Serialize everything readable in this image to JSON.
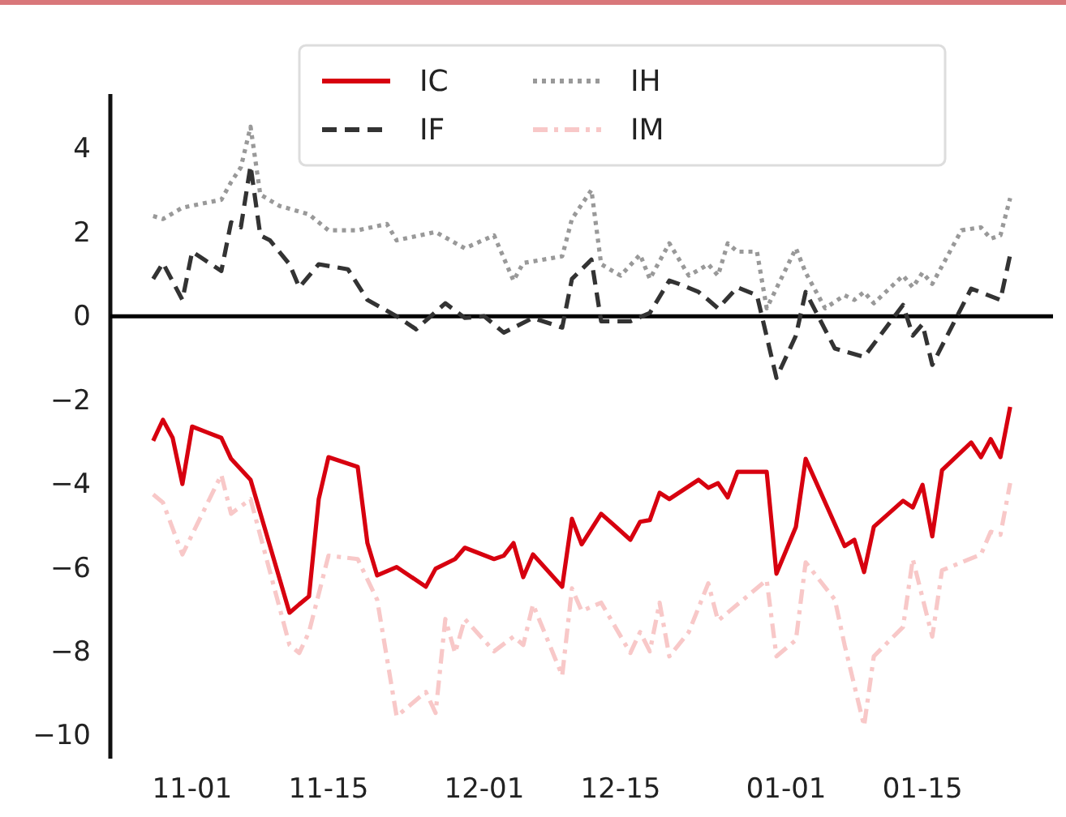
{
  "chart_data": {
    "type": "line",
    "categories": [
      null,
      null,
      null,
      null,
      "11-01",
      null,
      null,
      null,
      null,
      null,
      null,
      null,
      null,
      null,
      null,
      null,
      null,
      null,
      "11-15",
      null,
      null,
      null,
      null,
      null,
      null,
      null,
      null,
      null,
      null,
      null,
      null,
      null,
      null,
      null,
      "12-01",
      null,
      null,
      null,
      null,
      null,
      null,
      null,
      null,
      null,
      null,
      null,
      null,
      null,
      "12-15",
      null,
      null,
      null,
      null,
      null,
      null,
      null,
      null,
      null,
      null,
      null,
      null,
      null,
      null,
      null,
      null,
      "01-01",
      null,
      null,
      null,
      null,
      null,
      null,
      null,
      null,
      null,
      null,
      null,
      null,
      null,
      "01-15",
      null,
      null,
      null,
      null,
      null,
      null,
      null,
      null,
      null
    ],
    "ylim": [
      -10.55,
      5.3
    ],
    "yticks": [
      -10,
      -8,
      -6,
      -4,
      -2,
      0,
      2,
      4
    ],
    "grid": false,
    "legend": "top",
    "ref_lines": [
      {
        "axis": "y",
        "value": 0,
        "color": "#000000"
      }
    ],
    "series": [
      {
        "name": "IC",
        "color": "#d7000f",
        "line_style": "solid",
        "values": [
          -2.97,
          -2.47,
          -2.9,
          -4.0,
          -2.63,
          null,
          null,
          -2.9,
          -3.4,
          null,
          -3.9,
          null,
          null,
          null,
          -7.07,
          -6.87,
          -6.68,
          -4.36,
          -3.36,
          null,
          null,
          -3.59,
          -5.41,
          -6.18,
          null,
          -5.98,
          null,
          null,
          -6.45,
          -6.02,
          null,
          -5.79,
          -5.52,
          null,
          null,
          -5.79,
          -5.71,
          -5.41,
          -6.22,
          -5.68,
          null,
          null,
          -6.45,
          -4.83,
          -5.44,
          null,
          -4.71,
          null,
          null,
          -5.33,
          -4.9,
          -4.86,
          -4.21,
          -4.36,
          null,
          null,
          -3.9,
          -4.09,
          -3.98,
          -4.32,
          -3.71,
          null,
          null,
          -3.71,
          -6.14,
          null,
          -5.02,
          -3.4,
          null,
          null,
          null,
          -5.48,
          -5.33,
          -6.1,
          -5.02,
          null,
          null,
          -4.4,
          -4.56,
          -4.02,
          -5.25,
          -3.67,
          null,
          null,
          -3.01,
          -3.36,
          -2.93,
          -3.36,
          -2.16
        ]
      },
      {
        "name": "IF",
        "color": "#333333",
        "line_style": "dashed",
        "values": [
          0.89,
          1.27,
          null,
          0.39,
          1.54,
          null,
          null,
          1.08,
          2.24,
          2.12,
          3.59,
          1.93,
          1.81,
          null,
          1.24,
          0.69,
          null,
          1.24,
          null,
          null,
          1.12,
          null,
          0.39,
          null,
          null,
          0,
          null,
          -0.31,
          null,
          null,
          0.31,
          null,
          -0.04,
          null,
          0,
          null,
          -0.39,
          null,
          null,
          -0.04,
          null,
          null,
          -0.27,
          0.89,
          null,
          1.35,
          -0.12,
          null,
          null,
          -0.12,
          null,
          0.08,
          null,
          0.85,
          0.77,
          null,
          0.58,
          0.39,
          0.19,
          null,
          0.69,
          null,
          0.5,
          null,
          -1.47,
          null,
          -0.46,
          0.58,
          null,
          null,
          -0.77,
          null,
          null,
          -0.97,
          null,
          null,
          null,
          0.27,
          -0.46,
          -0.19,
          -1.16,
          null,
          null,
          null,
          0.66,
          null,
          null,
          0.39,
          1.47
        ]
      },
      {
        "name": "IH",
        "color": "#999999",
        "line_style": "dotted",
        "values": [
          2.39,
          2.32,
          null,
          2.59,
          null,
          null,
          null,
          2.78,
          3.2,
          3.55,
          4.52,
          2.9,
          null,
          2.63,
          null,
          null,
          2.43,
          null,
          2.05,
          null,
          null,
          2.05,
          null,
          null,
          2.2,
          1.81,
          null,
          null,
          null,
          2.01,
          null,
          null,
          1.62,
          null,
          null,
          1.93,
          null,
          0.85,
          1.27,
          null,
          null,
          null,
          1.43,
          2.32,
          null,
          3.01,
          1.24,
          null,
          0.97,
          null,
          1.47,
          0.89,
          null,
          1.74,
          null,
          0.97,
          null,
          1.24,
          0.97,
          1.74,
          1.54,
          null,
          1.54,
          0.19,
          null,
          null,
          1.62,
          1.04,
          null,
          0.19,
          null,
          0.5,
          0.39,
          0.58,
          0.31,
          null,
          null,
          0.97,
          0.69,
          1.04,
          0.77,
          null,
          null,
          2.05,
          null,
          2.12,
          1.85,
          1.93,
          2.82
        ]
      },
      {
        "name": "IM",
        "color": "#f8c8c8",
        "line_style": "dashdot",
        "values": [
          -4.25,
          -4.44,
          null,
          -5.68,
          null,
          null,
          null,
          -3.78,
          -4.71,
          null,
          -4.36,
          null,
          null,
          null,
          -7.84,
          -8.03,
          -7.53,
          null,
          -5.71,
          null,
          null,
          -5.79,
          null,
          -6.76,
          null,
          -9.54,
          null,
          null,
          -8.96,
          -9.46,
          -7.22,
          -8.03,
          -7.22,
          null,
          null,
          -7.99,
          null,
          -7.64,
          -7.84,
          -6.87,
          null,
          null,
          -8.57,
          -6.49,
          -7.03,
          null,
          -6.83,
          null,
          null,
          -8.03,
          -7.53,
          -7.99,
          -6.83,
          -8.11,
          null,
          -7.53,
          null,
          -6.37,
          -7.26,
          null,
          null,
          null,
          null,
          -6.29,
          -8.11,
          null,
          -7.72,
          -5.87,
          null,
          null,
          -6.76,
          -7.84,
          null,
          -9.77,
          -8.11,
          null,
          null,
          -7.41,
          -5.79,
          null,
          -7.64,
          -6.06,
          null,
          null,
          null,
          -5.68,
          -5.14,
          -5.21,
          -3.98
        ]
      }
    ]
  }
}
